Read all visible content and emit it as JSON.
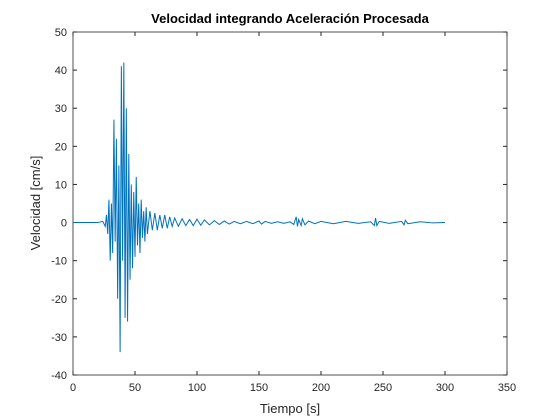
{
  "chart_data": {
    "type": "line",
    "title": "Velocidad integrando Aceleración Procesada",
    "xlabel": "Tiempo [s]",
    "ylabel": "Velocidad [cm/s]",
    "xlim": [
      0,
      350
    ],
    "xticks": [
      0,
      50,
      100,
      150,
      200,
      250,
      300,
      350
    ],
    "ylim": [
      -40,
      50
    ],
    "yticks": [
      -40,
      -30,
      -20,
      -10,
      0,
      10,
      20,
      30,
      40,
      50
    ],
    "grid": false,
    "series": [
      {
        "color": "#0072bd",
        "x": [
          0,
          20,
          24,
          26,
          27,
          28,
          29,
          30,
          31,
          32,
          33,
          34,
          35,
          36,
          37,
          38,
          39,
          40,
          41,
          42,
          43,
          44,
          45,
          46,
          47,
          48,
          49,
          50,
          51,
          52,
          53,
          54,
          55,
          56,
          57,
          58,
          59,
          60,
          62,
          64,
          66,
          68,
          70,
          72,
          74,
          76,
          78,
          80,
          82,
          85,
          88,
          91,
          94,
          97,
          100,
          103,
          106,
          110,
          114,
          118,
          122,
          126,
          130,
          135,
          140,
          145,
          150,
          152,
          155,
          160,
          165,
          170,
          175,
          178,
          180,
          181,
          182,
          184,
          185,
          187,
          190,
          195,
          200,
          210,
          220,
          230,
          240,
          243,
          244,
          245,
          247,
          255,
          265,
          267,
          268,
          270,
          280,
          290,
          300
        ],
        "values": [
          0,
          0,
          0.3,
          -1,
          2,
          -3,
          6,
          -10,
          5,
          -8,
          27,
          -5,
          22,
          -20,
          15,
          -34,
          41,
          -10,
          42,
          -25,
          30,
          -26,
          18,
          -15,
          10,
          -12,
          8,
          -9,
          12,
          -6,
          5,
          -8,
          6,
          -4,
          3,
          -5,
          4,
          -3,
          3,
          -2,
          2.5,
          -2,
          2,
          -1.5,
          2,
          -1.5,
          1.5,
          -1,
          1.2,
          -1,
          1,
          -0.8,
          0.8,
          -0.8,
          0.9,
          -0.7,
          0.7,
          -0.6,
          0.5,
          -0.5,
          0.4,
          -0.4,
          0.3,
          -0.3,
          0.3,
          -0.3,
          0.4,
          -0.4,
          0.3,
          -0.2,
          0.2,
          -0.2,
          0.2,
          -0.5,
          1.5,
          -1,
          0.8,
          -0.8,
          1,
          -0.6,
          0.4,
          -0.3,
          0.3,
          -0.3,
          0.3,
          -0.2,
          0.2,
          -0.8,
          1.2,
          -0.8,
          0.3,
          -0.2,
          0.3,
          -0.6,
          0.6,
          -0.3,
          0.2,
          -0.1,
          0
        ]
      }
    ]
  }
}
